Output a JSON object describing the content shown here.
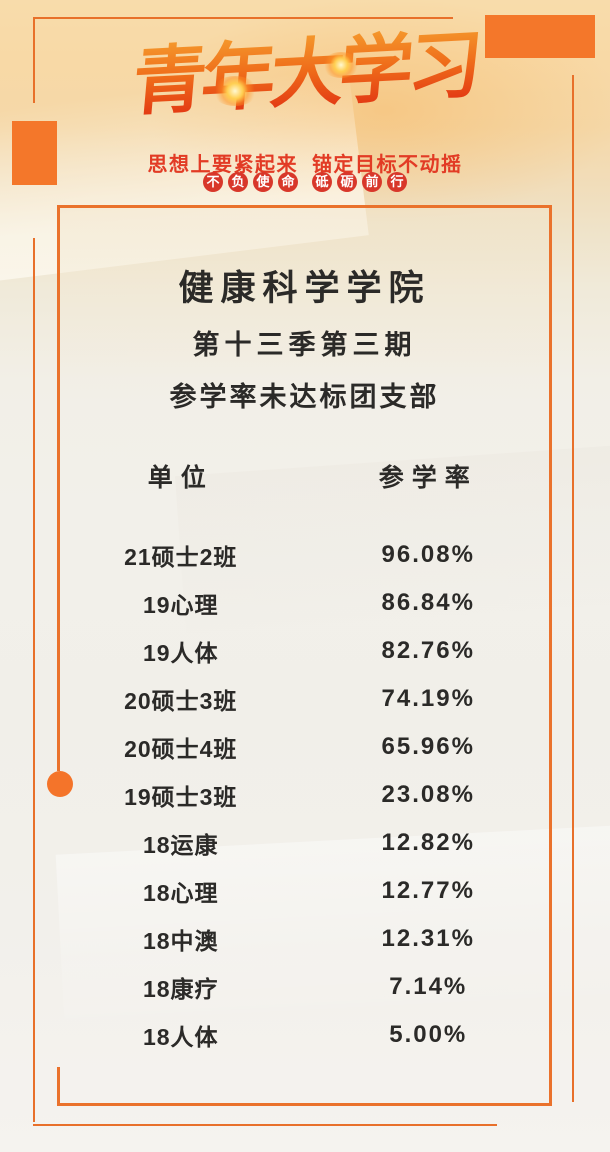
{
  "poster": {
    "logo_text": "青年大学习",
    "slogan_left": "思想上要紧起来",
    "slogan_right": "锚定目标不动摇",
    "badges": [
      "不",
      "负",
      "使",
      "命",
      "砥",
      "砺",
      "前",
      "行"
    ]
  },
  "content": {
    "college": "健康科学学院",
    "issue": "第十三季第三期",
    "subtitle": "参学率未达标团支部",
    "table": {
      "col_unit": "单位",
      "col_rate": "参学率",
      "rows": [
        {
          "unit": "21硕士2班",
          "rate": "96.08%"
        },
        {
          "unit": "19心理",
          "rate": "86.84%"
        },
        {
          "unit": "19人体",
          "rate": "82.76%"
        },
        {
          "unit": "20硕士3班",
          "rate": "74.19%"
        },
        {
          "unit": "20硕士4班",
          "rate": "65.96%"
        },
        {
          "unit": "19硕士3班",
          "rate": "23.08%"
        },
        {
          "unit": "18运康",
          "rate": "12.82%"
        },
        {
          "unit": "18心理",
          "rate": "12.77%"
        },
        {
          "unit": "18中澳",
          "rate": "12.31%"
        },
        {
          "unit": "18康疗",
          "rate": "7.14%"
        },
        {
          "unit": "18人体",
          "rate": "5.00%"
        }
      ]
    }
  },
  "colors": {
    "accent_orange": "#f4772a",
    "frame_orange": "#e8702a",
    "slogan_red": "#e23b25",
    "badge_red": "#d8372a",
    "text_dark": "#2b2a28"
  }
}
